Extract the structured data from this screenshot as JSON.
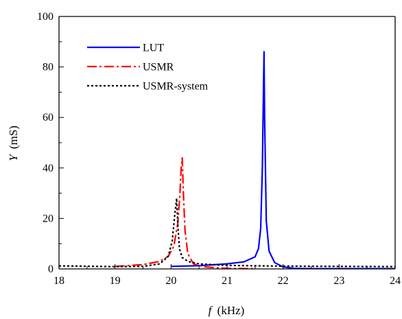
{
  "chart_data": {
    "type": "line",
    "xlabel_italic": "f",
    "xlabel_rest": "(kHz)",
    "ylabel_italic": "Y",
    "ylabel_rest": "(mS)",
    "xlim": [
      18,
      24
    ],
    "ylim": [
      0,
      100
    ],
    "xticks": [
      18,
      19,
      20,
      21,
      22,
      23,
      24
    ],
    "yticks": [
      0,
      20,
      40,
      60,
      80,
      100
    ],
    "x_minor_step": 0.5,
    "y_minor_step": 10,
    "grid": false,
    "legend_position": "top-left",
    "series": [
      {
        "name": "LUT",
        "color": "#0000ff",
        "dash": "solid",
        "x": [
          20.0,
          20.5,
          21.0,
          21.3,
          21.5,
          21.56,
          21.6,
          21.63,
          21.65,
          21.66,
          21.67,
          21.7,
          21.75,
          21.85,
          22.0,
          22.2,
          22.5,
          23.0,
          24.0
        ],
        "y": [
          1.0,
          1.3,
          2.0,
          2.8,
          4.8,
          8.0,
          16.0,
          40.0,
          72.0,
          86.0,
          60.0,
          19.0,
          7.0,
          2.5,
          0.8,
          0.2,
          0.1,
          0.1,
          0.1
        ]
      },
      {
        "name": "USMR",
        "color": "#ff0000",
        "dash": "dashdot",
        "x": [
          19.0,
          19.5,
          19.8,
          19.95,
          20.05,
          20.12,
          20.16,
          20.18,
          20.2,
          20.22,
          20.25,
          20.3,
          20.4,
          20.6,
          21.0,
          21.5
        ],
        "y": [
          1.0,
          1.7,
          3.0,
          5.0,
          9.0,
          18.0,
          30.0,
          40.0,
          44.0,
          30.0,
          15.0,
          6.0,
          2.0,
          0.8,
          0.2,
          0.1
        ]
      },
      {
        "name": "USMR-system",
        "color": "#000000",
        "dash": "dotted",
        "x": [
          18.0,
          19.0,
          19.5,
          19.8,
          19.95,
          20.02,
          20.06,
          20.09,
          20.1,
          20.12,
          20.15,
          20.2,
          20.3,
          20.5,
          21.0,
          22.0,
          24.0
        ],
        "y": [
          1.2,
          0.9,
          1.0,
          2.0,
          5.0,
          11.0,
          20.0,
          26.0,
          28.0,
          18.0,
          8.0,
          4.5,
          3.0,
          2.0,
          1.4,
          1.1,
          0.9
        ]
      }
    ]
  }
}
